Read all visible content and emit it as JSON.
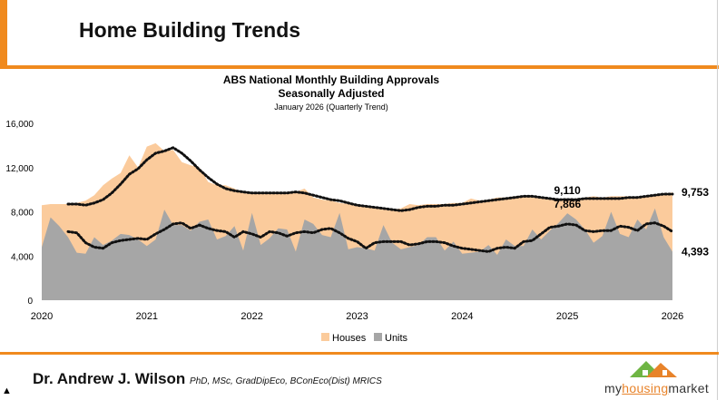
{
  "header": {
    "title": "Home Building Trends"
  },
  "footer": {
    "author": "Dr. Andrew J. Wilson",
    "qualifications": "PhD, MSc, GradDipEco, BConEco(Dist) MRICS",
    "logo": {
      "part1": "my",
      "part2": "housing",
      "part3": "market"
    }
  },
  "colors": {
    "accent": "#f08a1e",
    "houses": "#fbcb9c",
    "units": "#a6a6a6",
    "trend": "#111111"
  },
  "chart_data": {
    "type": "area",
    "title": "ABS National Monthly Building Approvals",
    "subtitle": "Seasonally Adjusted",
    "subtitle2": "January 2026 (Quarterly Trend)",
    "x_start": "2020-01",
    "x_end": "2026-01",
    "x_ticks": [
      "2020",
      "2021",
      "2022",
      "2023",
      "2024",
      "2025",
      "2026"
    ],
    "y_ticks": [
      "0",
      "4,000",
      "8,000",
      "12,000",
      "16,000"
    ],
    "ylim": [
      0,
      16000
    ],
    "grid": false,
    "legend": {
      "position": "bottom",
      "entries": [
        "Houses",
        "Units"
      ]
    },
    "series": [
      {
        "name": "Houses",
        "style": "area",
        "color": "#fbcb9c",
        "values": [
          8600,
          8700,
          8700,
          8700,
          8800,
          9000,
          9500,
          10400,
          11000,
          11500,
          13100,
          12000,
          13900,
          14200,
          13500,
          13600,
          12500,
          12200,
          12000,
          10700,
          10400,
          10400,
          10100,
          9700,
          9600,
          9700,
          9600,
          9700,
          9700,
          9800,
          10100,
          9300,
          9100,
          9000,
          8800,
          8700,
          8600,
          8500,
          8300,
          8200,
          8200,
          8300,
          8700,
          8600,
          8700,
          8700,
          8700,
          8800,
          8800,
          9200,
          9000,
          9100,
          9300,
          9300,
          9400,
          9400,
          9300,
          9200,
          9100,
          9100,
          9100,
          9200,
          9300,
          9400,
          9300,
          9400,
          9400,
          9400,
          9300,
          9400,
          9500,
          9600,
          9753
        ]
      },
      {
        "name": "Units",
        "style": "area",
        "color": "#a6a6a6",
        "values": [
          4800,
          7500,
          6700,
          5700,
          4300,
          4200,
          5700,
          5000,
          5400,
          6000,
          5900,
          5500,
          4900,
          5500,
          8200,
          6800,
          6800,
          6300,
          7100,
          7300,
          5500,
          5800,
          6700,
          4500,
          7900,
          5000,
          5600,
          6500,
          6400,
          4400,
          7300,
          6900,
          5900,
          5700,
          7900,
          4600,
          4800,
          4700,
          4500,
          6800,
          5200,
          4600,
          4800,
          5000,
          5700,
          5700,
          4500,
          5300,
          4200,
          4300,
          4400,
          5000,
          4100,
          5500,
          4900,
          4900,
          6400,
          5500,
          6300,
          7000,
          7866,
          7300,
          6400,
          5200,
          5800,
          8000,
          6000,
          5700,
          7300,
          6400,
          8300,
          5700,
          4393
        ]
      },
      {
        "style": "dotted-trend",
        "of": "Houses",
        "values": [
          null,
          null,
          null,
          8700,
          8700,
          8600,
          8800,
          9100,
          9700,
          10500,
          11400,
          11900,
          12700,
          13300,
          13500,
          13800,
          13300,
          12600,
          11800,
          11100,
          10500,
          10100,
          9900,
          9800,
          9700,
          9700,
          9700,
          9700,
          9700,
          9800,
          9700,
          9500,
          9300,
          9100,
          9000,
          8800,
          8600,
          8500,
          8400,
          8300,
          8200,
          8100,
          8200,
          8400,
          8500,
          8500,
          8600,
          8600,
          8700,
          8800,
          8900,
          9000,
          9100,
          9200,
          9300,
          9400,
          9400,
          9300,
          9200,
          9100,
          9110,
          9100,
          9200,
          9200,
          9200,
          9200,
          9200,
          9300,
          9300,
          9400,
          9500,
          9600,
          9600
        ]
      },
      {
        "style": "dotted-trend",
        "of": "Units",
        "values": [
          null,
          null,
          null,
          6200,
          6100,
          5200,
          4800,
          4700,
          5200,
          5400,
          5500,
          5600,
          5500,
          6000,
          6400,
          6900,
          7000,
          6500,
          6800,
          6500,
          6300,
          6200,
          5700,
          6200,
          6000,
          5700,
          6200,
          6100,
          5800,
          6100,
          6200,
          6100,
          6400,
          6500,
          6100,
          5600,
          5300,
          4700,
          5200,
          5300,
          5300,
          5300,
          5000,
          5100,
          5300,
          5300,
          5200,
          4900,
          4700,
          4600,
          4500,
          4400,
          4700,
          4800,
          4700,
          5300,
          5400,
          6000,
          6600,
          6700,
          6900,
          6800,
          6300,
          6200,
          6300,
          6300,
          6700,
          6600,
          6300,
          6900,
          7000,
          6700,
          6200
        ]
      }
    ],
    "annotations": [
      {
        "text": "9,110",
        "month_index": 60,
        "value": 9110,
        "series": "Houses trend"
      },
      {
        "text": "7,866",
        "month_index": 60,
        "value": 7866,
        "series": "Units"
      },
      {
        "text": "9,753",
        "month_index": 72,
        "value": 9753,
        "series": "Houses"
      },
      {
        "text": "4,393",
        "month_index": 72,
        "value": 4393,
        "series": "Units"
      }
    ]
  }
}
